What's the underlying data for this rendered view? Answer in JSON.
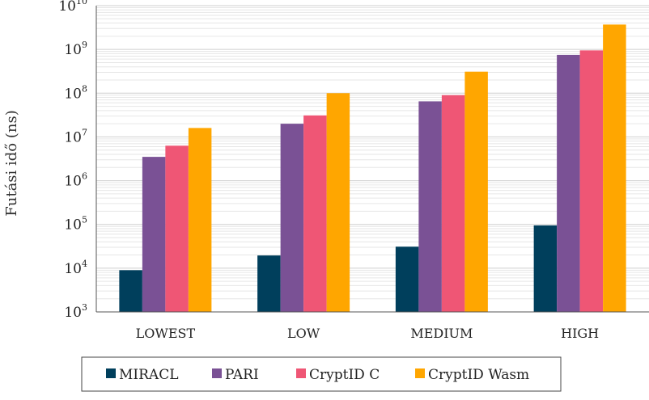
{
  "chart_data": {
    "type": "bar",
    "categories": [
      "LOWEST",
      "LOW",
      "MEDIUM",
      "HIGH"
    ],
    "series": [
      {
        "name": "MIRACL",
        "color": "#003f5c",
        "values": [
          9000,
          19500,
          31000,
          95000
        ]
      },
      {
        "name": "PARI",
        "color": "#7a5195",
        "values": [
          3500000,
          20000000,
          65000000,
          750000000
        ]
      },
      {
        "name": "CryptID C",
        "color": "#ef5675",
        "values": [
          6300000,
          31000000,
          90000000,
          950000000
        ]
      },
      {
        "name": "CryptID Wasm",
        "color": "#ffa600",
        "values": [
          16000000,
          100000000,
          310000000,
          3700000000
        ]
      }
    ],
    "ylabel": "Futási idő (ns)",
    "yscale": "log",
    "ylim": [
      1000,
      10000000000
    ],
    "yticks": [
      {
        "base": "10",
        "exp": "3"
      },
      {
        "base": "10",
        "exp": "4"
      },
      {
        "base": "10",
        "exp": "5"
      },
      {
        "base": "10",
        "exp": "6"
      },
      {
        "base": "10",
        "exp": "7"
      },
      {
        "base": "10",
        "exp": "8"
      },
      {
        "base": "10",
        "exp": "9"
      },
      {
        "base": "10",
        "exp": "10"
      }
    ],
    "grid": true,
    "legend_position": "bottom"
  }
}
